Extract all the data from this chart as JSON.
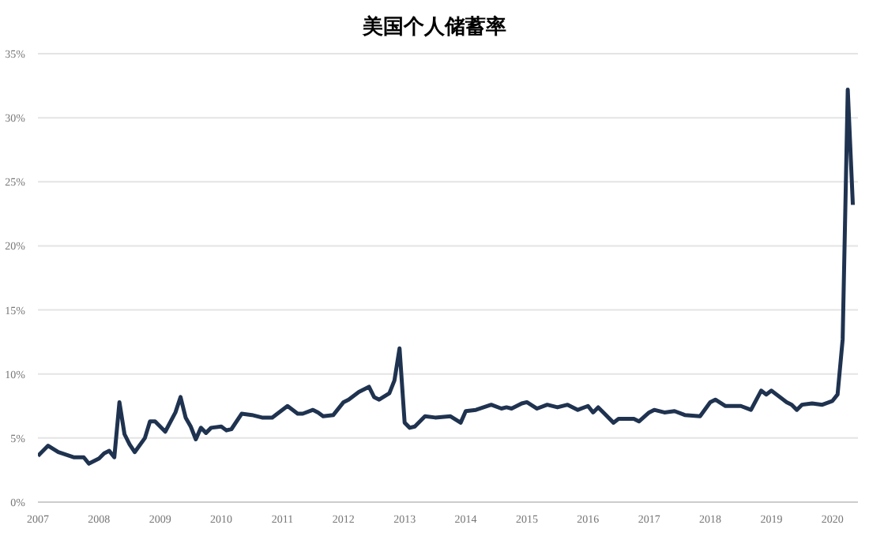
{
  "chart_data": {
    "type": "line",
    "title": "美国个人储蓄率",
    "x": [
      "2007-01",
      "2007-03",
      "2007-05",
      "2007-08",
      "2007-10",
      "2007-11",
      "2008-01",
      "2008-02",
      "2008-03",
      "2008-04",
      "2008-05",
      "2008-06",
      "2008-07",
      "2008-08",
      "2008-10",
      "2008-11",
      "2008-12",
      "2009-02",
      "2009-04",
      "2009-05",
      "2009-06",
      "2009-07",
      "2009-08",
      "2009-09",
      "2009-10",
      "2009-11",
      "2010-01",
      "2010-02",
      "2010-03",
      "2010-05",
      "2010-07",
      "2010-09",
      "2010-11",
      "2011-02",
      "2011-04",
      "2011-05",
      "2011-07",
      "2011-08",
      "2011-09",
      "2011-11",
      "2012-01",
      "2012-02",
      "2012-04",
      "2012-06",
      "2012-07",
      "2012-08",
      "2012-10",
      "2012-11",
      "2012-12",
      "2013-01",
      "2013-02",
      "2013-03",
      "2013-05",
      "2013-07",
      "2013-10",
      "2013-12",
      "2014-01",
      "2014-03",
      "2014-06",
      "2014-08",
      "2014-09",
      "2014-10",
      "2014-12",
      "2015-01",
      "2015-03",
      "2015-05",
      "2015-07",
      "2015-09",
      "2015-11",
      "2016-01",
      "2016-02",
      "2016-03",
      "2016-06",
      "2016-07",
      "2016-10",
      "2016-11",
      "2017-01",
      "2017-02",
      "2017-04",
      "2017-06",
      "2017-08",
      "2017-11",
      "2018-01",
      "2018-02",
      "2018-04",
      "2018-07",
      "2018-09",
      "2018-11",
      "2018-12",
      "2019-01",
      "2019-04",
      "2019-05",
      "2019-06",
      "2019-07",
      "2019-09",
      "2019-11",
      "2020-01",
      "2020-02",
      "2020-03",
      "2020-04",
      "2020-05"
    ],
    "series": [
      {
        "color": "#1f3350",
        "values": [
          3.6,
          4.4,
          3.9,
          3.5,
          3.5,
          3.0,
          3.4,
          3.8,
          4.0,
          3.5,
          7.8,
          5.3,
          4.5,
          3.9,
          5.0,
          6.3,
          6.3,
          5.5,
          7.0,
          8.2,
          6.6,
          5.9,
          4.9,
          5.8,
          5.4,
          5.8,
          5.9,
          5.6,
          5.7,
          6.9,
          6.8,
          6.6,
          6.6,
          7.5,
          6.9,
          6.9,
          7.2,
          7.0,
          6.7,
          6.8,
          7.8,
          8.0,
          8.6,
          9.0,
          8.2,
          8.0,
          8.5,
          9.5,
          12.0,
          6.2,
          5.8,
          5.9,
          6.7,
          6.6,
          6.7,
          6.2,
          7.1,
          7.2,
          7.6,
          7.3,
          7.4,
          7.3,
          7.7,
          7.8,
          7.3,
          7.6,
          7.4,
          7.6,
          7.2,
          7.5,
          7.0,
          7.4,
          6.2,
          6.5,
          6.5,
          6.3,
          7.0,
          7.2,
          7.0,
          7.1,
          6.8,
          6.7,
          7.8,
          8.0,
          7.5,
          7.5,
          7.2,
          8.7,
          8.4,
          8.7,
          7.8,
          7.6,
          7.2,
          7.6,
          7.7,
          7.6,
          7.9,
          8.4,
          12.7,
          32.2,
          23.2
        ]
      }
    ],
    "xlim": [
      "2007-01",
      "2020-06"
    ],
    "xticks": [
      "2007",
      "2008",
      "2009",
      "2010",
      "2011",
      "2012",
      "2013",
      "2014",
      "2015",
      "2016",
      "2017",
      "2018",
      "2019",
      "2020"
    ],
    "ylim": [
      0,
      35
    ],
    "yticks": [
      {
        "value": 0,
        "label": "0%"
      },
      {
        "value": 5,
        "label": "5%"
      },
      {
        "value": 10,
        "label": "10%"
      },
      {
        "value": 15,
        "label": "15%"
      },
      {
        "value": 20,
        "label": "20%"
      },
      {
        "value": 25,
        "label": "25%"
      },
      {
        "value": 30,
        "label": "30%"
      },
      {
        "value": 35,
        "label": "35%"
      }
    ],
    "grid": "y",
    "legend": false,
    "marker": "none",
    "line_style": "solid"
  }
}
